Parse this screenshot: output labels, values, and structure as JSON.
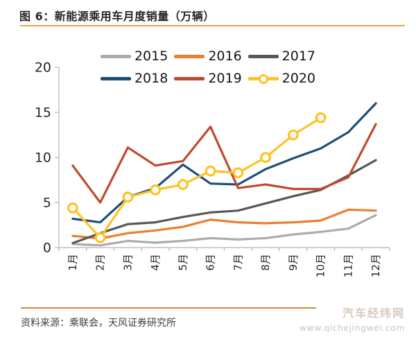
{
  "header": {
    "title": "图 6：新能源乘用车月度销量（万辆）"
  },
  "footer": {
    "source": "资料来源：乘联会，天风证券研究所",
    "watermark_name": "汽车经纬网",
    "watermark_url": "www.qichejingwei.com"
  },
  "accent_colors": {
    "title_rule": "#e2a455",
    "footer_rule": "#cf8a3c"
  },
  "chart_data": {
    "type": "line",
    "title": "新能源乘用车月度销量（万辆）",
    "xlabel": "",
    "ylabel": "",
    "ylim": [
      0,
      20
    ],
    "y_ticks": [
      0,
      5,
      10,
      15,
      20
    ],
    "grid": false,
    "legend_position": "top-center",
    "axis_color": "#bfbfbf",
    "tick_label_color": "#262626",
    "categories": [
      "1月",
      "2月",
      "3月",
      "4月",
      "5月",
      "6月",
      "7月",
      "8月",
      "9月",
      "10月",
      "11月",
      "12月"
    ],
    "series": [
      {
        "name": "2015",
        "color": "#ababab",
        "marker": false,
        "values": [
          0.4,
          0.25,
          0.75,
          0.55,
          0.75,
          1.05,
          0.9,
          1.05,
          1.45,
          1.75,
          2.1,
          3.6
        ]
      },
      {
        "name": "2016",
        "color": "#ED7D31",
        "marker": false,
        "values": [
          1.3,
          1.0,
          1.6,
          1.9,
          2.3,
          3.1,
          2.8,
          2.7,
          2.8,
          3.0,
          4.2,
          4.1
        ]
      },
      {
        "name": "2017",
        "color": "#575757",
        "marker": false,
        "values": [
          0.5,
          1.6,
          2.6,
          2.8,
          3.4,
          3.9,
          4.1,
          4.9,
          5.7,
          6.4,
          8.0,
          9.7
        ]
      },
      {
        "name": "2018",
        "color": "#1F4E79",
        "marker": false,
        "values": [
          3.2,
          2.8,
          5.6,
          6.6,
          9.2,
          7.1,
          7.0,
          8.7,
          9.9,
          11.0,
          12.8,
          16.0
        ]
      },
      {
        "name": "2019",
        "color": "#C04A2E",
        "marker": false,
        "values": [
          9.1,
          5.0,
          11.1,
          9.1,
          9.6,
          13.4,
          6.6,
          7.0,
          6.5,
          6.5,
          7.8,
          13.7
        ]
      },
      {
        "name": "2020",
        "color": "#FFC226",
        "marker": true,
        "values": [
          4.4,
          1.1,
          5.6,
          6.4,
          7.0,
          8.5,
          8.3,
          10.0,
          12.5,
          14.4
        ]
      }
    ]
  }
}
